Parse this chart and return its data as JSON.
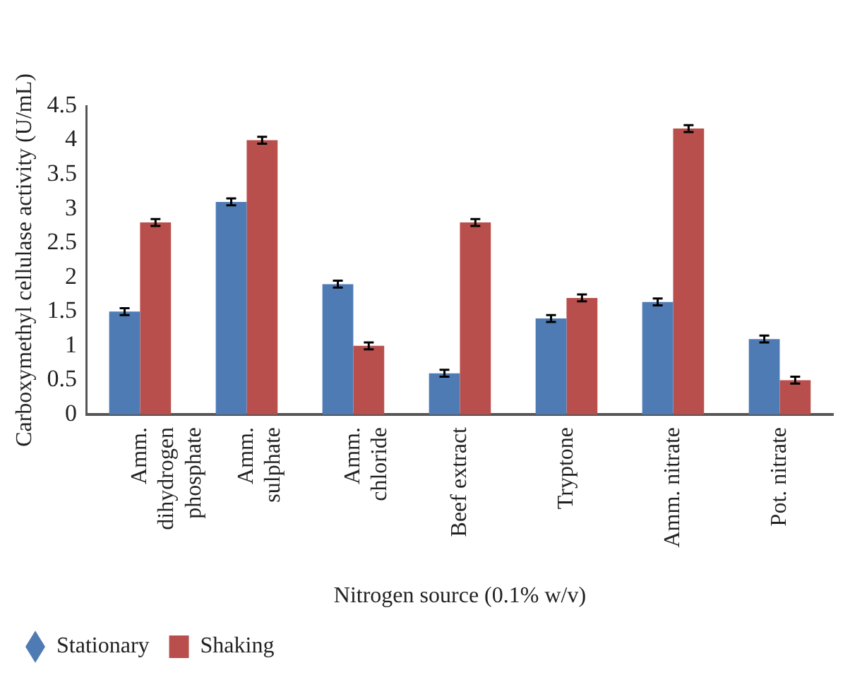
{
  "chart_data": {
    "type": "bar",
    "xlabel": "Nitrogen source (0.1% w/v)",
    "ylabel": "Carboxymethyl cellulase activity (U/mL)",
    "categories": [
      "Amm. dihydrogen phosphate",
      "Amm. sulphate",
      "Amm. chloride",
      "Beef extract",
      "Tryptone",
      "Amm. nitrate",
      "Pot. nitrate"
    ],
    "series": [
      {
        "name": "Stationary",
        "color": "#4f7bb5",
        "values": [
          1.5,
          3.1,
          1.9,
          0.6,
          1.4,
          1.64,
          1.1
        ],
        "errors": [
          0.05,
          0.05,
          0.05,
          0.05,
          0.05,
          0.05,
          0.05
        ]
      },
      {
        "name": "Shaking",
        "color": "#b94f4c",
        "values": [
          2.8,
          4.0,
          1.0,
          2.8,
          1.7,
          4.17,
          0.5
        ],
        "errors": [
          0.05,
          0.05,
          0.05,
          0.05,
          0.05,
          0.05,
          0.05
        ]
      }
    ],
    "ylim": [
      0,
      4.5
    ],
    "yticks": [
      0,
      0.5,
      1,
      1.5,
      2,
      2.5,
      3,
      3.5,
      4,
      4.5
    ],
    "grid": false,
    "legend": "bottom left",
    "marker": "diamond"
  }
}
